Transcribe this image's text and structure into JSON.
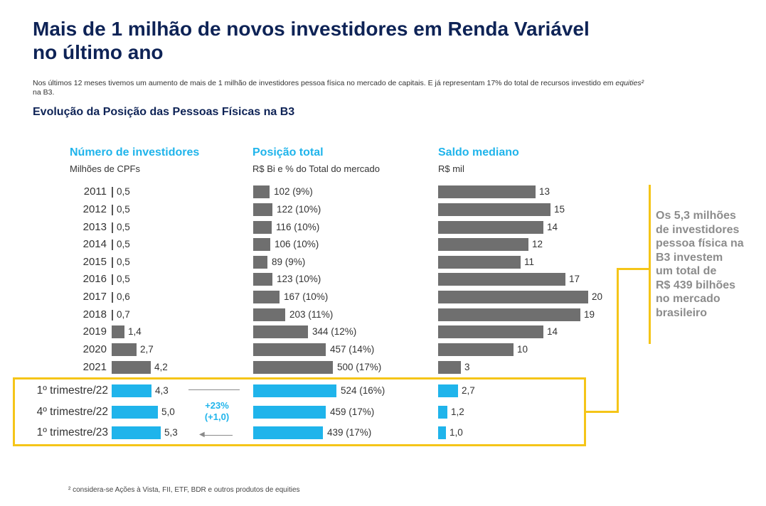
{
  "header": {
    "title_line1": "Mais de 1 milhão de novos investidores em Renda Variável",
    "title_line2": "no último ano",
    "intro_text_before_em": "Nos últimos 12 meses tivemos um aumento de mais de 1 milhão de investidores pessoa física no mercado de capitais. E já representam 17% do total de recursos investido em ",
    "intro_em": "equities²",
    "intro_text_after_em": " na B3.",
    "subtitle": "Evolução da Posição das Pessoas Físicas na B3"
  },
  "colors": {
    "title": "#0e2356",
    "accent_blue": "#1fb4eb",
    "bar_gray": "#6f6f6f",
    "highlight_yellow": "#f5c518",
    "callout_gray": "#8c8c8c"
  },
  "chart_data": [
    {
      "type": "bar",
      "orientation": "horizontal",
      "title": "Número de investidores",
      "subtitle": "Milhões de CPFs",
      "categories": [
        "2011",
        "2012",
        "2013",
        "2014",
        "2015",
        "2016",
        "2017",
        "2018",
        "2019",
        "2020",
        "2021",
        "1º trimestre/22",
        "4º trimestre/22",
        "1º trimestre/23"
      ],
      "values": [
        0.5,
        0.5,
        0.5,
        0.5,
        0.5,
        0.5,
        0.6,
        0.7,
        1.4,
        2.7,
        4.2,
        4.3,
        5.0,
        5.3
      ],
      "data_labels": [
        "0,5",
        "0,5",
        "0,5",
        "0,5",
        "0,5",
        "0,5",
        "0,6",
        "0,7",
        "1,4",
        "2,7",
        "4,2",
        "4,3",
        "5,0",
        "5,3"
      ],
      "annotation": {
        "line1": "+23%",
        "line2": "(+1,0)"
      }
    },
    {
      "type": "bar",
      "orientation": "horizontal",
      "title": "Posição total",
      "subtitle": "R$ Bi e % do Total do mercado",
      "categories": [
        "2011",
        "2012",
        "2013",
        "2014",
        "2015",
        "2016",
        "2017",
        "2018",
        "2019",
        "2020",
        "2021",
        "1º trimestre/22",
        "4º trimestre/22",
        "1º trimestre/23"
      ],
      "values": [
        102,
        122,
        116,
        106,
        89,
        123,
        167,
        203,
        344,
        457,
        500,
        524,
        459,
        439
      ],
      "data_labels": [
        "102 (9%)",
        "122 (10%)",
        "116 (10%)",
        "106 (10%)",
        "89 (9%)",
        "123 (10%)",
        "167 (10%)",
        "203 (11%)",
        "344 (12%)",
        "457 (14%)",
        "500 (17%)",
        "524 (16%)",
        "459 (17%)",
        "439 (17%)"
      ]
    },
    {
      "type": "bar",
      "orientation": "horizontal",
      "title": "Saldo mediano",
      "subtitle": "R$ mil",
      "categories": [
        "2011",
        "2012",
        "2013",
        "2014",
        "2015",
        "2016",
        "2017",
        "2018",
        "2019",
        "2020",
        "2021",
        "1º trimestre/22",
        "4º trimestre/22",
        "1º trimestre/23"
      ],
      "values": [
        13,
        15,
        14,
        12,
        11,
        17,
        20,
        19,
        14,
        10,
        3,
        2.7,
        1.2,
        1.0
      ],
      "data_labels": [
        "13",
        "15",
        "14",
        "12",
        "11",
        "17",
        "20",
        "19",
        "14",
        "10",
        "3",
        "2,7",
        "1,2",
        "1,0"
      ]
    }
  ],
  "callout": {
    "lines": [
      "Os 5,3 milhões",
      "de investidores",
      "pessoa física na",
      "B3 investem",
      "um total de",
      "R$ 439 bilhões",
      "no mercado",
      "brasileiro"
    ]
  },
  "footnote": "² considera-se Ações à Vista, FII, ETF, BDR e outros produtos de equities"
}
